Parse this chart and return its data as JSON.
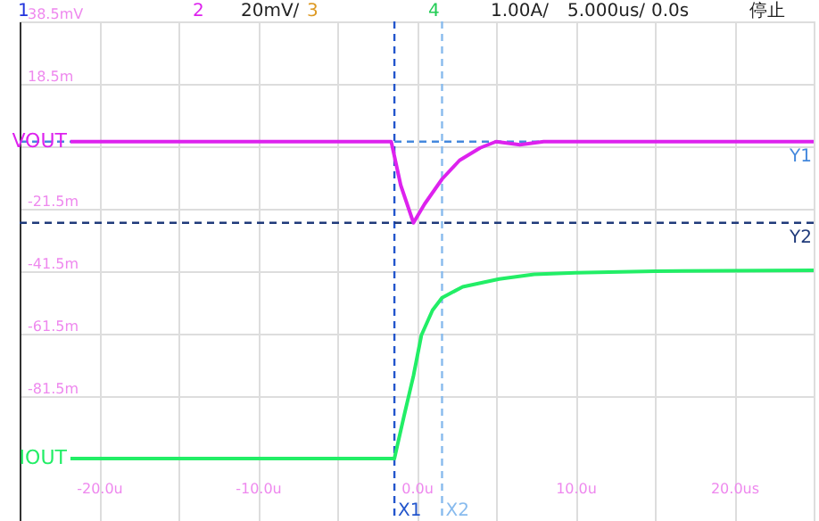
{
  "chart_data": {
    "type": "line",
    "annotations": [
      "1",
      "2",
      "20mV/",
      "3",
      "4",
      "1.00A/",
      "5.000us/",
      "0.0s",
      "停止"
    ],
    "xlim": [
      -25,
      25
    ],
    "xticks": [
      {
        "value": -25,
        "label": null
      },
      {
        "value": -20,
        "label": "-20.0u"
      },
      {
        "value": -15,
        "label": null
      },
      {
        "value": -10,
        "label": "-10.0u"
      },
      {
        "value": -5,
        "label": null
      },
      {
        "value": 0,
        "label": "0.0u"
      },
      {
        "value": 5,
        "label": null
      },
      {
        "value": 10,
        "label": "10.0u"
      },
      {
        "value": 15,
        "label": null
      },
      {
        "value": 20,
        "label": "20.0us"
      },
      {
        "value": 25,
        "label": null
      }
    ],
    "ylim": [
      -121.5,
      38.5
    ],
    "yticks": [
      {
        "value": -121.5,
        "label": null
      },
      {
        "value": -81.5,
        "label": "-81.5m"
      },
      {
        "value": -61.5,
        "label": "-61.5m"
      },
      {
        "value": -41.5,
        "label": "-41.5m"
      },
      {
        "value": -21.5,
        "label": "-21.5m"
      },
      {
        "value": -1.5,
        "label": null
      },
      {
        "value": 18.5,
        "label": "18.5m"
      },
      {
        "value": 38.5,
        "label": "38.5mV"
      }
    ],
    "grid": true,
    "marker": "none",
    "line_style": "solid",
    "series": [
      {
        "name": "VOUT",
        "color": "#dd22ee",
        "x": [
          -21.8,
          -1.6,
          -1.0,
          -0.2,
          0.5,
          1.6,
          2.7,
          4.0,
          5.0,
          6.5,
          8.0,
          25
        ],
        "values": [
          0,
          0,
          -14,
          -26,
          -20,
          -12,
          -6,
          -2,
          0,
          -1,
          0,
          0
        ]
      },
      {
        "name": "IOUT",
        "color": "#22ee66",
        "x": [
          -21.8,
          -1.4,
          -0.8,
          -0.2,
          0.3,
          1.0,
          1.6,
          2.9,
          5.2,
          7.4,
          10,
          15,
          25
        ],
        "values": [
          -101.5,
          -101.5,
          -88,
          -75,
          -62,
          -54,
          -50,
          -46.5,
          -44,
          -42.5,
          -42,
          -41.5,
          -41.2
        ]
      }
    ],
    "ref_lines": [
      {
        "axis": "x",
        "value": -1.4,
        "label": "X1",
        "color": "#2255cc",
        "line_style": "dashed"
      },
      {
        "axis": "x",
        "value": 1.6,
        "label": "X2",
        "color": "#88bbee",
        "line_style": "dashed"
      },
      {
        "axis": "y",
        "value": 0,
        "label": "Y1",
        "color": "#4488dd",
        "line_style": "dashed"
      },
      {
        "axis": "y",
        "value": -26,
        "label": "Y2",
        "color": "#1f3a7a",
        "line_style": "dashed"
      }
    ]
  }
}
